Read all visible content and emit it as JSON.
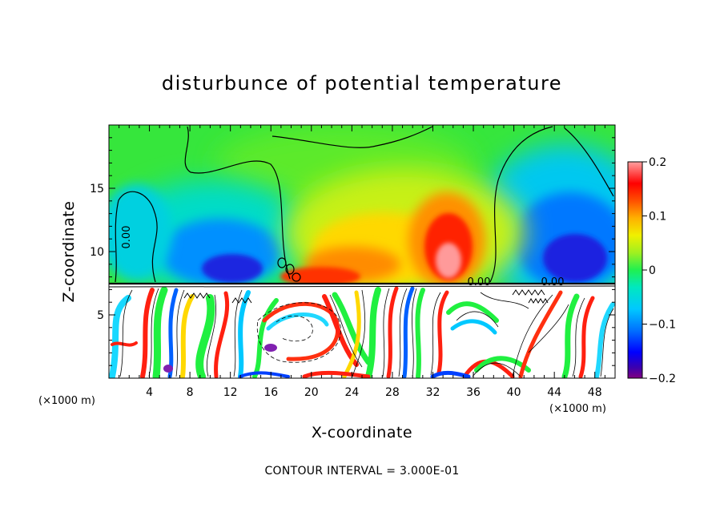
{
  "chart_data": {
    "type": "heatmap",
    "title": "disturbunce of potential temperature",
    "xlabel": "X-coordinate",
    "ylabel": "Z-coordinate",
    "x_unit": "(×1000 m)",
    "y_unit": "(×1000 m)",
    "xlim": [
      0,
      50
    ],
    "ylim": [
      0,
      20
    ],
    "x_ticks": [
      4,
      8,
      12,
      16,
      20,
      24,
      28,
      32,
      36,
      40,
      44,
      48
    ],
    "y_ticks": [
      5,
      10,
      15
    ],
    "colorbar": {
      "range": [
        -0.2,
        0.2
      ],
      "tick_labels": [
        "0.2",
        "0.1",
        "0",
        "−0.1",
        "−0.2"
      ],
      "tick_values": [
        0.2,
        0.1,
        0,
        -0.1,
        -0.2
      ],
      "colors": [
        "#800080",
        "#3a00b0",
        "#0000ff",
        "#0050ff",
        "#0090ff",
        "#00c8ff",
        "#00e8e8",
        "#00e8a0",
        "#20f060",
        "#60f040",
        "#a0f020",
        "#d8f000",
        "#ffe000",
        "#ffb000",
        "#ff8000",
        "#ff4000",
        "#ff0000",
        "#ff6060",
        "#ffa0a0"
      ]
    },
    "contour_label": "0.00",
    "note": "CONTOUR INTERVAL = 3.000E-01",
    "features": [
      {
        "kind": "warm",
        "x": 32,
        "z": 11,
        "value": 0.18
      },
      {
        "kind": "warm",
        "x": 25,
        "z": 9.5,
        "value": 0.12
      },
      {
        "kind": "cold",
        "x": 46,
        "z": 10.5,
        "value": -0.15
      },
      {
        "kind": "cold",
        "x": 10,
        "z": 10.5,
        "value": -0.15
      },
      {
        "kind": "cold",
        "x": 4,
        "z": 11,
        "value": -0.1
      }
    ]
  }
}
